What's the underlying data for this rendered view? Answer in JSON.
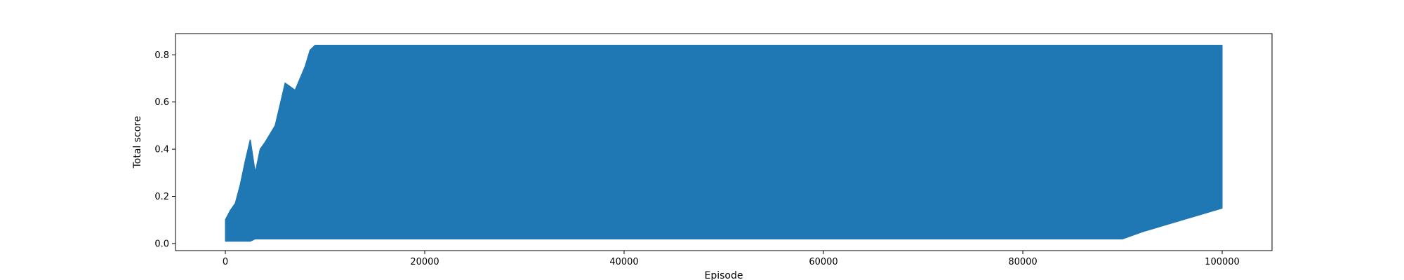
{
  "chart_data": {
    "type": "line",
    "title": "",
    "xlabel": "Episode",
    "ylabel": "Total score",
    "xlim": [
      -5000,
      105000
    ],
    "ylim": [
      -0.03,
      0.89
    ],
    "xticks": [
      0,
      20000,
      40000,
      60000,
      80000,
      100000
    ],
    "xtick_labels": [
      "0",
      "20000",
      "40000",
      "60000",
      "80000",
      "100000"
    ],
    "yticks": [
      0.0,
      0.2,
      0.4,
      0.6,
      0.8
    ],
    "ytick_labels": [
      "0.0",
      "0.2",
      "0.4",
      "0.6",
      "0.8"
    ],
    "grid": false,
    "legend": "none",
    "series": [
      {
        "color": "#1f77b4",
        "x": [
          0,
          500,
          1000,
          1500,
          2000,
          2500,
          3000,
          3500,
          4000,
          5000,
          6000,
          7000,
          7500,
          8000,
          8500,
          9000,
          10000,
          20000,
          30000,
          40000,
          50000,
          60000,
          70000,
          80000,
          90000,
          92000,
          100000
        ],
        "max": [
          0.1,
          0.14,
          0.17,
          0.25,
          0.35,
          0.44,
          0.3,
          0.4,
          0.43,
          0.5,
          0.68,
          0.65,
          0.7,
          0.75,
          0.82,
          0.84,
          0.84,
          0.84,
          0.84,
          0.84,
          0.84,
          0.84,
          0.84,
          0.84,
          0.84,
          0.84,
          0.84
        ],
        "min": [
          0.01,
          0.01,
          0.01,
          0.01,
          0.01,
          0.01,
          0.02,
          0.02,
          0.02,
          0.02,
          0.02,
          0.02,
          0.02,
          0.02,
          0.02,
          0.02,
          0.02,
          0.02,
          0.02,
          0.02,
          0.02,
          0.02,
          0.02,
          0.02,
          0.02,
          0.05,
          0.15
        ]
      }
    ]
  }
}
